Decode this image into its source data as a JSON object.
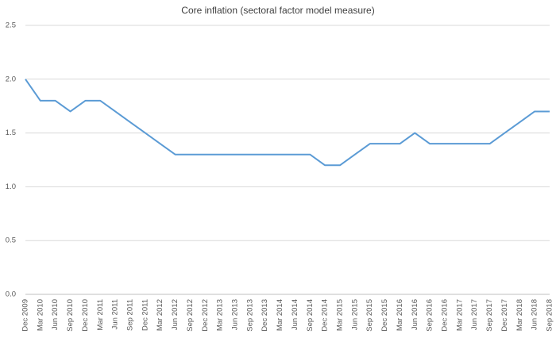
{
  "chart_data": {
    "type": "line",
    "title": "Core inflation (sectoral factor model measure)",
    "categories": [
      "Dec 2009",
      "Mar 2010",
      "Jun 2010",
      "Sep 2010",
      "Dec 2010",
      "Mar 2011",
      "Jun 2011",
      "Sep 2011",
      "Dec 2011",
      "Mar 2012",
      "Jun 2012",
      "Sep 2012",
      "Dec 2012",
      "Mar 2013",
      "Jun 2013",
      "Sep 2013",
      "Dec 2013",
      "Mar 2014",
      "Jun 2014",
      "Sep 2014",
      "Dec 2014",
      "Mar 2015",
      "Jun 2015",
      "Sep 2015",
      "Dec 2015",
      "Mar 2016",
      "Jun 2016",
      "Sep 2016",
      "Dec 2016",
      "Mar 2017",
      "Jun 2017",
      "Sep 2017",
      "Dec 2017",
      "Mar 2018",
      "Jun 2018",
      "Sep 2018"
    ],
    "values": [
      2.0,
      1.8,
      1.8,
      1.7,
      1.8,
      1.8,
      1.7,
      1.6,
      1.5,
      1.4,
      1.3,
      1.3,
      1.3,
      1.3,
      1.3,
      1.3,
      1.3,
      1.3,
      1.3,
      1.3,
      1.2,
      1.2,
      1.3,
      1.4,
      1.4,
      1.4,
      1.5,
      1.4,
      1.4,
      1.4,
      1.4,
      1.4,
      1.5,
      1.6,
      1.7,
      1.7
    ],
    "color": "#5b9bd5",
    "ylim": [
      0,
      2.5
    ],
    "yticks": [
      {
        "value": 0,
        "label": "0.0"
      },
      0.5,
      {
        "value": 1,
        "label": "1.0"
      },
      1.5,
      {
        "value": 2,
        "label": "2.0"
      },
      2.5
    ],
    "grid": true
  }
}
